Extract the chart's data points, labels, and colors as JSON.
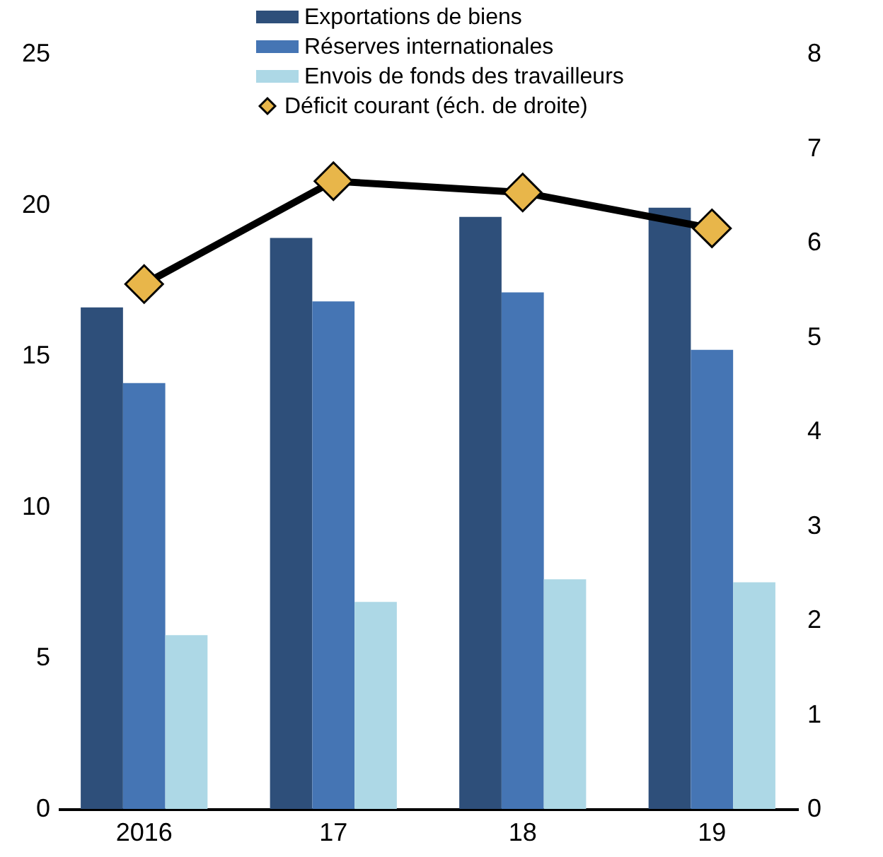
{
  "chart_data": {
    "type": "bar",
    "categories": [
      "2016",
      "17",
      "18",
      "19"
    ],
    "series": [
      {
        "name": "Exportations de biens",
        "color": "#2e4f7a",
        "values": [
          16.6,
          18.9,
          19.6,
          19.9
        ]
      },
      {
        "name": "Réserves internationales",
        "color": "#4575b4",
        "values": [
          14.1,
          16.8,
          17.1,
          15.2
        ]
      },
      {
        "name": "Envois de fonds des travailleurs",
        "color": "#add8e6",
        "values": [
          5.75,
          6.85,
          7.6,
          7.5
        ]
      },
      {
        "name": "Déficit courant (éch. de droite)",
        "type": "line",
        "axis": "y2",
        "color": "#000000",
        "colors": [
          "#e8b64a",
          "#e8b64a",
          "#e8b64a",
          "#e8b64a"
        ],
        "values": [
          5.56,
          6.65,
          6.53,
          6.15
        ]
      }
    ],
    "ylim": [
      0,
      25
    ],
    "yticks": [
      0,
      5,
      10,
      15,
      20,
      25
    ],
    "y2lim": [
      0,
      8
    ],
    "y2ticks": [
      0,
      1,
      2,
      3,
      4,
      5,
      6,
      7,
      8
    ],
    "grid": false,
    "legend": "top",
    "marker": "diamond",
    "line_style": "solid"
  }
}
